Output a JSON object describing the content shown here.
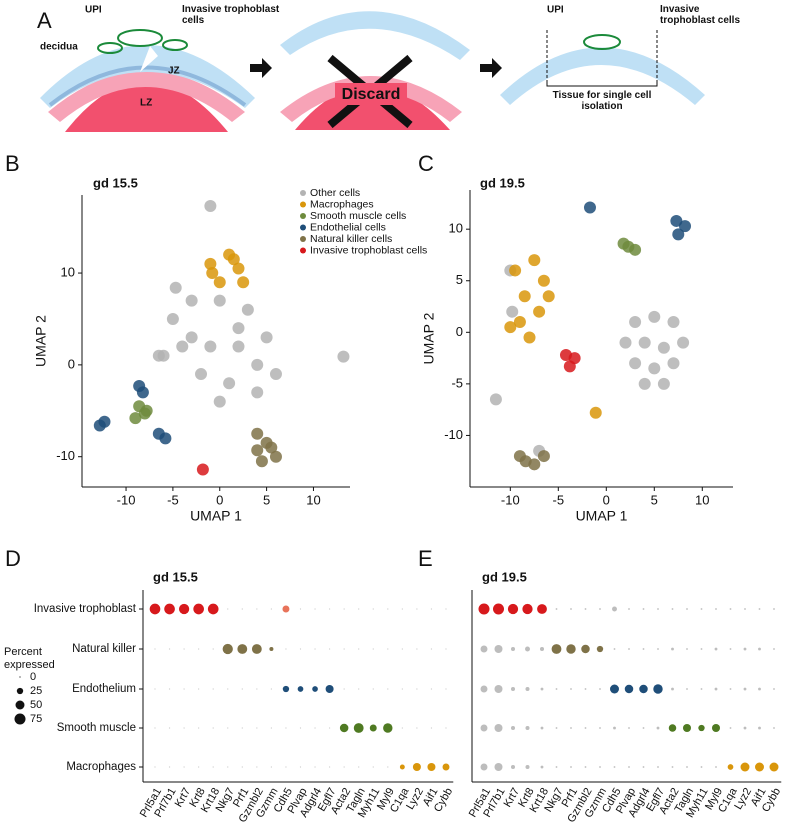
{
  "diagram": {
    "panel_label": "A",
    "upi_left": "UPI",
    "invasive_left": "Invasive trophoblast cells",
    "decidua": "decidua",
    "jz": "JZ",
    "lz": "LZ",
    "discard": "Discard",
    "upi_right": "UPI",
    "invasive_right": "Invasive trophoblast cells",
    "tissue": "Tissue for single cell isolation"
  },
  "chart_data": [
    {
      "type": "scatter",
      "panel_label": "B",
      "title": "gd 15.5",
      "xlabel": "UMAP 1",
      "ylabel": "UMAP 2",
      "xlim": [
        -14.7,
        13.9
      ],
      "ylim": [
        -13.3,
        18.5
      ],
      "xticks": [
        -10,
        -5,
        0,
        5,
        10
      ],
      "yticks": [
        -10,
        0,
        10
      ],
      "legend": "upper right",
      "series": [
        {
          "name": "Other cells",
          "color": "#b3b3b3",
          "x": [
            -5,
            -3,
            0,
            3,
            5,
            -4,
            -1,
            2,
            4,
            -2,
            1,
            4,
            0,
            -3,
            2,
            6,
            -6,
            13.2,
            -4.7,
            -1,
            -6.5
          ],
          "y": [
            5,
            7,
            7,
            6,
            3,
            2,
            2,
            2,
            0,
            -1,
            -2,
            -3,
            -4,
            3,
            4,
            -1,
            1,
            0.9,
            8.4,
            17.3,
            1
          ]
        },
        {
          "name": "Macrophages",
          "color": "#d9960b",
          "x": [
            -1,
            1,
            2,
            0,
            2.5,
            -0.8,
            1.5
          ],
          "y": [
            11,
            12,
            10.5,
            9,
            9,
            10,
            11.5
          ]
        },
        {
          "name": "Smooth muscle cells",
          "color": "#6e8b3d",
          "x": [
            -8.6,
            -8,
            -9,
            -7.8
          ],
          "y": [
            -4.5,
            -5.3,
            -5.8,
            -5
          ]
        },
        {
          "name": "Endothelial cells",
          "color": "#1f4e79",
          "x": [
            -8.6,
            -8.2,
            -12.8,
            -12.3,
            -6.5,
            -5.8
          ],
          "y": [
            -2.3,
            -3,
            -6.6,
            -6.2,
            -7.5,
            -8
          ]
        },
        {
          "name": "Natural killer cells",
          "color": "#7f7248",
          "x": [
            4,
            5,
            6,
            4.5,
            5.5,
            4
          ],
          "y": [
            -7.5,
            -8.5,
            -10,
            -10.5,
            -9,
            -9.3
          ]
        },
        {
          "name": "Invasive trophoblast cells",
          "color": "#d7191c",
          "x": [
            -1.8
          ],
          "y": [
            -11.4
          ]
        }
      ]
    },
    {
      "type": "scatter",
      "panel_label": "C",
      "title": "gd 19.5",
      "xlabel": "UMAP 1",
      "ylabel": "UMAP 2",
      "xlim": [
        -14.2,
        13.2
      ],
      "ylim": [
        -15,
        13.8
      ],
      "xticks": [
        -10,
        -5,
        0,
        5,
        10
      ],
      "yticks": [
        -10,
        -5,
        0,
        5,
        10
      ],
      "series": [
        {
          "color": "#b3b3b3",
          "x": [
            3,
            5,
            7,
            2,
            4,
            6,
            8,
            3,
            5,
            7,
            4,
            6,
            -10,
            -11.5,
            -7,
            -9.8
          ],
          "y": [
            1,
            1.5,
            1,
            -1,
            -1,
            -1.5,
            -1,
            -3,
            -3.5,
            -3,
            -5,
            -5,
            6,
            -6.5,
            -11.5,
            2
          ]
        },
        {
          "color": "#d9960b",
          "x": [
            -9.5,
            -7.5,
            -6.5,
            -8.5,
            -7,
            -9,
            -8,
            -10,
            -6,
            -1.1
          ],
          "y": [
            6,
            7,
            5,
            3.5,
            2,
            1,
            -0.5,
            0.5,
            3.5,
            -7.8
          ]
        },
        {
          "color": "#6e8b3d",
          "x": [
            2.3,
            3,
            1.8
          ],
          "y": [
            8.3,
            8,
            8.6
          ]
        },
        {
          "color": "#1f4e79",
          "x": [
            7.3,
            8.2,
            7.5,
            -1.7
          ],
          "y": [
            10.8,
            10.3,
            9.5,
            12.1
          ]
        },
        {
          "color": "#7f7248",
          "x": [
            -9,
            -7.5,
            -6.5,
            -8.4
          ],
          "y": [
            -12,
            -12.8,
            -12,
            -12.5
          ]
        },
        {
          "color": "#d7191c",
          "x": [
            -4.2,
            -3.3,
            -3.8
          ],
          "y": [
            -2.2,
            -2.5,
            -3.3
          ]
        }
      ]
    },
    {
      "type": "dotplot",
      "panel_label": "D",
      "title": "gd 15.5",
      "categories": [
        "Prl5a1",
        "Prl7b1",
        "Krt7",
        "Krt8",
        "Krt18",
        "Nkg7",
        "Prf1",
        "Gzmbl2",
        "Gzmm",
        "Cdh5",
        "Plvap",
        "Adgrl4",
        "Egfl7",
        "Acta2",
        "Tagln",
        "Myh11",
        "Myl9",
        "C1qa",
        "Lyz2",
        "Aif1",
        "Cybb"
      ],
      "size_legend": {
        "title": "Percent expressed",
        "values": [
          0,
          25,
          50,
          75
        ]
      },
      "series": [
        {
          "name": "Invasive trophoblast",
          "values": [
            70,
            70,
            65,
            70,
            70,
            1,
            1,
            1,
            1,
            30,
            1,
            1,
            1,
            1,
            1,
            1,
            1,
            1,
            1,
            1,
            1
          ],
          "colors": [
            "#d7191c",
            "#d7191c",
            "#d7191c",
            "#d7191c",
            "#d7191c",
            "#cccccc",
            "#cccccc",
            "#cccccc",
            "#cccccc",
            "#e8735a",
            "#cccccc",
            "#cccccc",
            "#cccccc",
            "#cccccc",
            "#cccccc",
            "#cccccc",
            "#cccccc",
            "#cccccc",
            "#cccccc",
            "#cccccc",
            "#cccccc"
          ]
        },
        {
          "name": "Natural killer",
          "values": [
            1,
            1,
            1,
            1,
            1,
            65,
            60,
            60,
            10,
            1,
            1,
            1,
            1,
            1,
            1,
            1,
            1,
            1,
            1,
            1,
            1
          ],
          "colors": [
            "#cccccc",
            "#cccccc",
            "#cccccc",
            "#cccccc",
            "#cccccc",
            "#7f7248",
            "#7f7248",
            "#7f7248",
            "#7f7248",
            "#cccccc",
            "#cccccc",
            "#cccccc",
            "#cccccc",
            "#cccccc",
            "#cccccc",
            "#cccccc",
            "#cccccc",
            "#cccccc",
            "#cccccc",
            "#cccccc",
            "#cccccc"
          ]
        },
        {
          "name": "Endothelium",
          "values": [
            1,
            1,
            1,
            1,
            1,
            1,
            1,
            1,
            1,
            25,
            20,
            20,
            40,
            1,
            1,
            1,
            1,
            1,
            1,
            1,
            1
          ],
          "colors": [
            "#cccccc",
            "#cccccc",
            "#cccccc",
            "#cccccc",
            "#cccccc",
            "#cccccc",
            "#cccccc",
            "#cccccc",
            "#cccccc",
            "#1f4e79",
            "#1f4e79",
            "#1f4e79",
            "#1f4e79",
            "#cccccc",
            "#cccccc",
            "#cccccc",
            "#cccccc",
            "#cccccc",
            "#cccccc",
            "#cccccc",
            "#cccccc"
          ]
        },
        {
          "name": "Smooth muscle",
          "values": [
            1,
            1,
            1,
            1,
            1,
            1,
            1,
            1,
            1,
            1,
            1,
            1,
            1,
            45,
            60,
            30,
            55,
            1,
            1,
            1,
            1
          ],
          "colors": [
            "#cccccc",
            "#cccccc",
            "#cccccc",
            "#cccccc",
            "#cccccc",
            "#cccccc",
            "#cccccc",
            "#cccccc",
            "#cccccc",
            "#cccccc",
            "#cccccc",
            "#cccccc",
            "#cccccc",
            "#4f7a22",
            "#4f7a22",
            "#4f7a22",
            "#4f7a22",
            "#cccccc",
            "#cccccc",
            "#cccccc",
            "#cccccc"
          ]
        },
        {
          "name": "Macrophages",
          "values": [
            1,
            1,
            1,
            1,
            1,
            1,
            1,
            1,
            1,
            1,
            1,
            1,
            1,
            1,
            1,
            1,
            1,
            15,
            40,
            40,
            30
          ],
          "colors": [
            "#cccccc",
            "#cccccc",
            "#cccccc",
            "#cccccc",
            "#cccccc",
            "#cccccc",
            "#cccccc",
            "#cccccc",
            "#cccccc",
            "#cccccc",
            "#cccccc",
            "#cccccc",
            "#cccccc",
            "#cccccc",
            "#cccccc",
            "#cccccc",
            "#cccccc",
            "#d9960b",
            "#d9960b",
            "#d9960b",
            "#d9960b"
          ]
        }
      ]
    },
    {
      "type": "dotplot",
      "panel_label": "E",
      "title": "gd 19.5",
      "categories": [
        "Prl5a1",
        "Prl7b1",
        "Krt7",
        "Krt8",
        "Krt18",
        "Nkg7",
        "Prf1",
        "Gzmbl2",
        "Gzmm",
        "Cdh5",
        "Plvap",
        "Adgrl4",
        "Egfl7",
        "Acta2",
        "Tagln",
        "Myh11",
        "Myl9",
        "C1qa",
        "Lyz2",
        "Aif1",
        "Cybb"
      ],
      "series": [
        {
          "values": [
            75,
            75,
            65,
            65,
            60,
            2,
            2,
            2,
            2,
            15,
            2,
            2,
            2,
            2,
            2,
            2,
            2,
            2,
            2,
            2,
            2
          ],
          "colors": [
            "#d7191c",
            "#d7191c",
            "#d7191c",
            "#d7191c",
            "#d7191c",
            "#bdbdbd",
            "#bdbdbd",
            "#bdbdbd",
            "#bdbdbd",
            "#bdbdbd",
            "#bdbdbd",
            "#bdbdbd",
            "#bdbdbd",
            "#bdbdbd",
            "#bdbdbd",
            "#bdbdbd",
            "#bdbdbd",
            "#bdbdbd",
            "#bdbdbd",
            "#bdbdbd",
            "#bdbdbd"
          ]
        },
        {
          "values": [
            30,
            40,
            10,
            15,
            10,
            60,
            55,
            45,
            25,
            2,
            2,
            2,
            2,
            5,
            2,
            2,
            5,
            2,
            5,
            5,
            2
          ],
          "colors": [
            "#bdbdbd",
            "#bdbdbd",
            "#bdbdbd",
            "#bdbdbd",
            "#bdbdbd",
            "#7f7248",
            "#7f7248",
            "#7f7248",
            "#7f7248",
            "#bdbdbd",
            "#bdbdbd",
            "#bdbdbd",
            "#bdbdbd",
            "#bdbdbd",
            "#bdbdbd",
            "#bdbdbd",
            "#bdbdbd",
            "#bdbdbd",
            "#bdbdbd",
            "#bdbdbd",
            "#bdbdbd"
          ]
        },
        {
          "values": [
            30,
            40,
            10,
            10,
            5,
            2,
            2,
            2,
            2,
            50,
            45,
            45,
            55,
            5,
            2,
            2,
            5,
            2,
            5,
            5,
            2
          ],
          "colors": [
            "#bdbdbd",
            "#bdbdbd",
            "#bdbdbd",
            "#bdbdbd",
            "#bdbdbd",
            "#bdbdbd",
            "#bdbdbd",
            "#bdbdbd",
            "#bdbdbd",
            "#1f4e79",
            "#1f4e79",
            "#1f4e79",
            "#1f4e79",
            "#bdbdbd",
            "#bdbdbd",
            "#bdbdbd",
            "#bdbdbd",
            "#bdbdbd",
            "#bdbdbd",
            "#bdbdbd",
            "#bdbdbd"
          ]
        },
        {
          "values": [
            30,
            40,
            10,
            10,
            5,
            2,
            2,
            2,
            2,
            5,
            2,
            2,
            5,
            35,
            40,
            25,
            40,
            2,
            5,
            5,
            2
          ],
          "colors": [
            "#bdbdbd",
            "#bdbdbd",
            "#bdbdbd",
            "#bdbdbd",
            "#bdbdbd",
            "#bdbdbd",
            "#bdbdbd",
            "#bdbdbd",
            "#bdbdbd",
            "#bdbdbd",
            "#bdbdbd",
            "#bdbdbd",
            "#bdbdbd",
            "#4f7a22",
            "#4f7a22",
            "#4f7a22",
            "#4f7a22",
            "#bdbdbd",
            "#bdbdbd",
            "#bdbdbd",
            "#bdbdbd"
          ]
        },
        {
          "values": [
            30,
            40,
            10,
            10,
            5,
            2,
            2,
            2,
            2,
            2,
            2,
            2,
            2,
            2,
            2,
            2,
            2,
            20,
            50,
            50,
            50
          ],
          "colors": [
            "#bdbdbd",
            "#bdbdbd",
            "#bdbdbd",
            "#bdbdbd",
            "#bdbdbd",
            "#bdbdbd",
            "#bdbdbd",
            "#bdbdbd",
            "#bdbdbd",
            "#bdbdbd",
            "#bdbdbd",
            "#bdbdbd",
            "#bdbdbd",
            "#bdbdbd",
            "#bdbdbd",
            "#bdbdbd",
            "#bdbdbd",
            "#d9960b",
            "#d9960b",
            "#d9960b",
            "#d9960b"
          ]
        }
      ]
    }
  ]
}
